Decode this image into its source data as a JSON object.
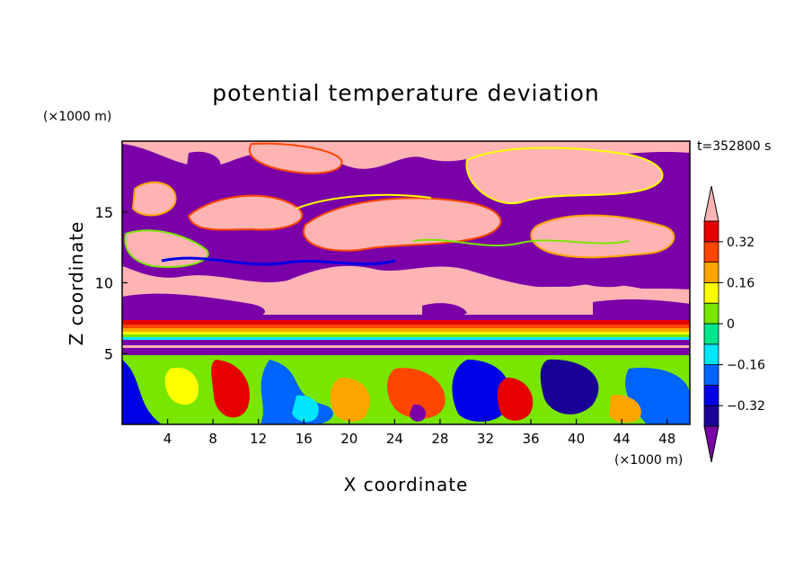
{
  "chart_data": {
    "type": "heatmap",
    "title": "potential temperature deviation",
    "xlabel": "X coordinate",
    "ylabel": "Z coordinate",
    "x_unit": "(×1000 m)",
    "y_unit": "(×1000 m)",
    "time_label": "t=352800 s",
    "xlim": [
      0,
      50
    ],
    "ylim": [
      0,
      20
    ],
    "x_ticks": [
      4,
      8,
      12,
      16,
      20,
      24,
      28,
      32,
      36,
      40,
      44,
      48
    ],
    "y_ticks": [
      5,
      10,
      15
    ],
    "colorbar": {
      "levels": [
        -0.4,
        -0.32,
        -0.24,
        -0.16,
        -0.08,
        0,
        0.08,
        0.16,
        0.24,
        0.32,
        0.4
      ],
      "labels": [
        "0.32",
        "0.16",
        "0",
        "−0.16",
        "−0.32"
      ],
      "label_values": [
        0.32,
        0.16,
        0,
        -0.16,
        -0.32
      ],
      "colors": [
        "#7a00a8",
        "#1a0096",
        "#0000e6",
        "#0064ff",
        "#00e6ff",
        "#00e68c",
        "#78e600",
        "#ffff00",
        "#ffa500",
        "#ff4600",
        "#e60000",
        "#ffb4b4"
      ]
    },
    "field_description_levels": {
      "upper_layer_range_z": [
        7.5,
        20
      ],
      "stable_band_range_z": [
        5,
        7.5
      ],
      "lower_layer_range_z": [
        0,
        5
      ]
    }
  }
}
